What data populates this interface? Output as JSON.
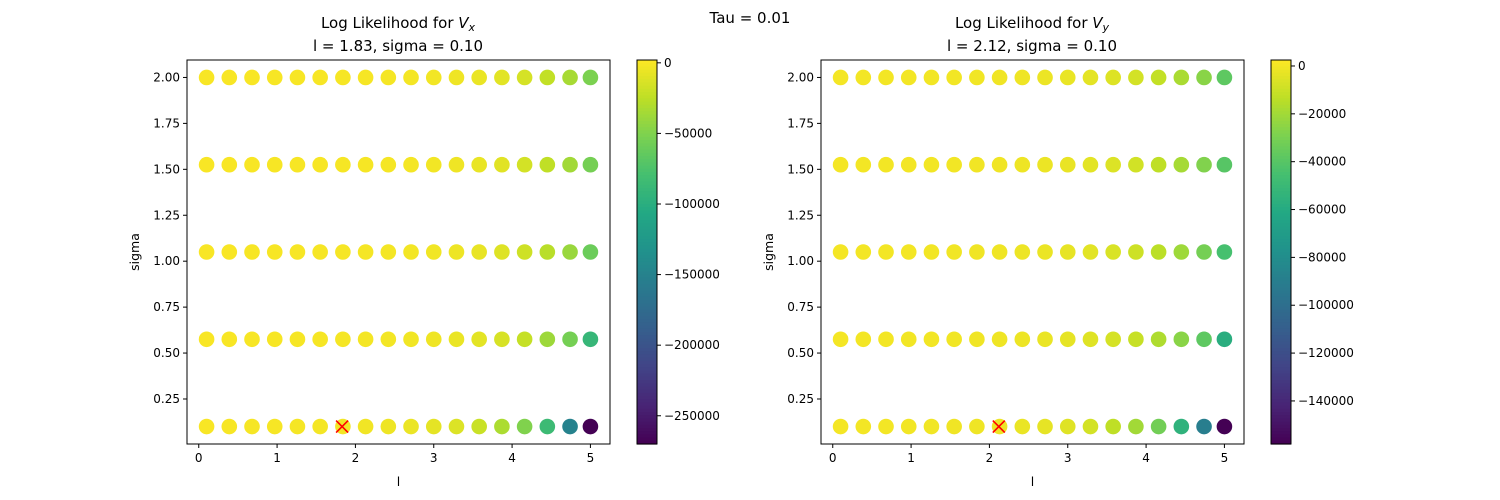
{
  "figure": {
    "suptitle": "Tau = 0.01"
  },
  "chart_data": [
    {
      "type": "scatter",
      "title_prefix": "Log Likelihood for ",
      "title_var": "V",
      "title_sub": "x",
      "subtitle": "l = 1.83, sigma = 0.10",
      "xlabel": "l",
      "ylabel": "sigma",
      "xlim": [
        -0.15,
        5.25
      ],
      "ylim": [
        0.005,
        2.095
      ],
      "xticks": [
        0,
        1,
        2,
        3,
        4,
        5
      ],
      "xtick_labels": [
        "0",
        "1",
        "2",
        "3",
        "4",
        "5"
      ],
      "yticks": [
        0.25,
        0.5,
        0.75,
        1.0,
        1.25,
        1.5,
        1.75,
        2.0
      ],
      "ytick_labels": [
        "0.25",
        "0.50",
        "0.75",
        "1.00",
        "1.25",
        "1.50",
        "1.75",
        "2.00"
      ],
      "grid": false,
      "x": [
        0.1,
        0.39,
        0.68,
        0.97,
        1.26,
        1.55,
        1.84,
        2.13,
        2.42,
        2.71,
        3.0,
        3.29,
        3.58,
        3.87,
        4.16,
        4.45,
        4.74,
        5.0
      ],
      "y": [
        0.1,
        0.575,
        1.05,
        1.525,
        2.0
      ],
      "values": [
        [
          -300,
          -500,
          -800,
          -1100,
          -1500,
          -2000,
          -2600,
          -3300,
          -4200,
          -5500,
          -8000,
          -12000,
          -20000,
          -32000,
          -50000,
          -85000,
          -150000,
          -270000
        ],
        [
          -200,
          -300,
          -400,
          -600,
          -800,
          -1100,
          -1400,
          -1800,
          -2300,
          -3000,
          -4000,
          -6000,
          -9000,
          -14000,
          -22000,
          -38000,
          -55000,
          -90000
        ],
        [
          -200,
          -250,
          -350,
          -450,
          -600,
          -800,
          -1000,
          -1300,
          -1700,
          -2200,
          -3000,
          -4500,
          -7000,
          -11000,
          -18000,
          -27000,
          -40000,
          -60000
        ],
        [
          -150,
          -200,
          -300,
          -400,
          -500,
          -700,
          -900,
          -1100,
          -1500,
          -2000,
          -2700,
          -4000,
          -6500,
          -10000,
          -16000,
          -24000,
          -36000,
          -55000
        ],
        [
          -150,
          -200,
          -300,
          -400,
          -500,
          -650,
          -850,
          -1100,
          -1400,
          -1900,
          -2600,
          -3800,
          -6000,
          -9500,
          -15000,
          -23000,
          -34000,
          -52000
        ]
      ],
      "best": {
        "l": 1.83,
        "sigma": 0.1
      },
      "colorbar": {
        "range": [
          -270000,
          2000
        ],
        "ticks": [
          0,
          -50000,
          -100000,
          -150000,
          -200000,
          -250000
        ],
        "tick_labels": [
          "0",
          "−50000",
          "−100000",
          "−150000",
          "−200000",
          "−250000"
        ],
        "colormap": "viridis"
      }
    },
    {
      "type": "scatter",
      "title_prefix": "Log Likelihood for ",
      "title_var": "V",
      "title_sub": "y",
      "subtitle": "l = 2.12, sigma = 0.10",
      "xlabel": "l",
      "ylabel": "sigma",
      "xlim": [
        -0.15,
        5.25
      ],
      "ylim": [
        0.005,
        2.095
      ],
      "xticks": [
        0,
        1,
        2,
        3,
        4,
        5
      ],
      "xtick_labels": [
        "0",
        "1",
        "2",
        "3",
        "4",
        "5"
      ],
      "yticks": [
        0.25,
        0.5,
        0.75,
        1.0,
        1.25,
        1.5,
        1.75,
        2.0
      ],
      "ytick_labels": [
        "0.25",
        "0.50",
        "0.75",
        "1.00",
        "1.25",
        "1.50",
        "1.75",
        "2.00"
      ],
      "grid": false,
      "x": [
        0.1,
        0.39,
        0.68,
        0.97,
        1.26,
        1.55,
        1.84,
        2.13,
        2.42,
        2.71,
        3.0,
        3.29,
        3.58,
        3.87,
        4.16,
        4.45,
        4.74,
        5.0
      ],
      "y": [
        0.1,
        0.575,
        1.05,
        1.525,
        2.0
      ],
      "values": [
        [
          200,
          100,
          0,
          -200,
          -400,
          -700,
          -1000,
          -1500,
          -2200,
          -3200,
          -5000,
          -8000,
          -13000,
          -20000,
          -32000,
          -55000,
          -90000,
          -158000
        ],
        [
          200,
          100,
          0,
          -150,
          -300,
          -500,
          -800,
          -1100,
          -1600,
          -2300,
          -3300,
          -5000,
          -7500,
          -11000,
          -17000,
          -26000,
          -38000,
          -58000
        ],
        [
          200,
          100,
          0,
          -100,
          -250,
          -400,
          -650,
          -950,
          -1400,
          -2000,
          -2900,
          -4300,
          -6500,
          -9500,
          -14000,
          -21000,
          -31000,
          -45000
        ],
        [
          200,
          100,
          0,
          -100,
          -200,
          -350,
          -550,
          -850,
          -1200,
          -1800,
          -2600,
          -3900,
          -5800,
          -8500,
          -13000,
          -19000,
          -28000,
          -40000
        ],
        [
          200,
          100,
          0,
          -100,
          -200,
          -300,
          -500,
          -800,
          -1100,
          -1700,
          -2500,
          -3700,
          -5500,
          -8000,
          -12000,
          -18000,
          -26000,
          -38000
        ]
      ],
      "best": {
        "l": 2.12,
        "sigma": 0.1
      },
      "colorbar": {
        "range": [
          -158000,
          2500
        ],
        "ticks": [
          0,
          -20000,
          -40000,
          -60000,
          -80000,
          -100000,
          -120000,
          -140000
        ],
        "tick_labels": [
          "0",
          "−20000",
          "−40000",
          "−60000",
          "−80000",
          "−100000",
          "−120000",
          "−140000"
        ],
        "colormap": "viridis"
      }
    }
  ],
  "colors": {
    "best_marker": "#ff0000",
    "axes": "#000000"
  }
}
